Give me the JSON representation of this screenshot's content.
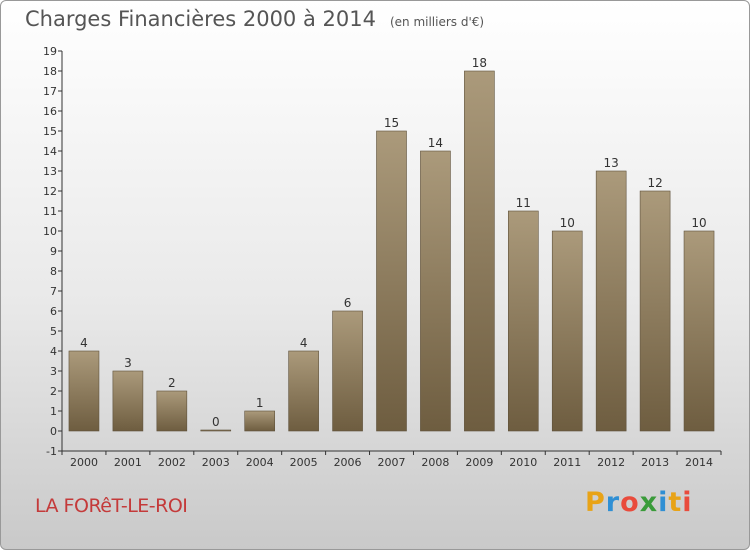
{
  "chart_data": {
    "type": "bar",
    "title": "Charges Financières 2000 à 2014",
    "subtitle": "(en milliers d'€)",
    "categories": [
      "2000",
      "2001",
      "2002",
      "2003",
      "2004",
      "2005",
      "2006",
      "2007",
      "2008",
      "2009",
      "2010",
      "2011",
      "2012",
      "2013",
      "2014"
    ],
    "values": [
      4,
      3,
      2,
      0,
      1,
      4,
      6,
      15,
      14,
      18,
      11,
      10,
      13,
      12,
      10
    ],
    "ylim": [
      -1,
      19
    ],
    "yticks": [
      -1,
      0,
      1,
      2,
      3,
      4,
      5,
      6,
      7,
      8,
      9,
      10,
      11,
      12,
      13,
      14,
      15,
      16,
      17,
      18,
      19
    ],
    "grid": false,
    "bar_color": "#8f7e60"
  },
  "place_name": "LA FORêT-LE-ROI",
  "logo": {
    "letters": [
      "P",
      "r",
      "o",
      "x",
      "i",
      "t",
      "i"
    ],
    "colors": [
      "#e8a317",
      "#2f8fd4",
      "#e94b3c",
      "#3a9b3a",
      "#2f8fd4",
      "#e8a317",
      "#e94b3c"
    ]
  }
}
